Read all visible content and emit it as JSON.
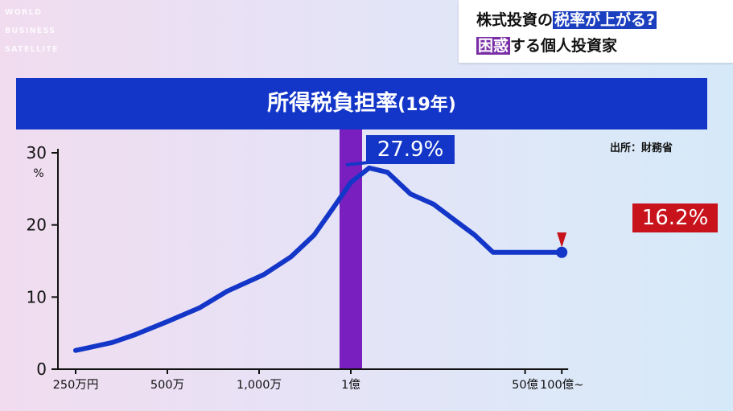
{
  "logo": {
    "lines": [
      "WORLD",
      "BUSINESS",
      "SATELLITE"
    ]
  },
  "headline": {
    "line1_prefix": "株式投資の",
    "line1_highlight": "税率が上がる?",
    "line2_highlight": "困惑",
    "line2_suffix": "する個人投資家"
  },
  "title": {
    "main": "所得税負担率",
    "sub": "(19年)"
  },
  "source": "出所：財務省",
  "colors": {
    "line": "#1336c8",
    "highlight_band": "#7a1fbf",
    "peak_callout": "#1336c8",
    "end_callout": "#c8121c"
  },
  "chart_data": {
    "type": "line",
    "title": "所得税負担率(19年)",
    "ylabel": "%",
    "ylim": [
      0,
      30
    ],
    "yticks": [
      0,
      10,
      20,
      30
    ],
    "x_tick_labels": [
      "250万円",
      "500万",
      "1,000万",
      "1億",
      "50億",
      "100億~"
    ],
    "x_tick_positions": [
      0,
      1,
      2,
      3,
      4.9,
      5.3
    ],
    "highlight_x": 3,
    "grid": false,
    "series": [
      {
        "x": [
          0,
          0.15,
          0.4,
          0.65,
          1.0,
          1.35,
          1.65,
          2.05,
          2.35,
          2.6,
          2.8,
          3.0,
          3.2,
          3.4,
          3.65,
          3.9,
          4.15,
          4.35,
          4.55,
          4.9,
          5.3
        ],
        "values": [
          2.6,
          3.0,
          3.7,
          4.8,
          6.6,
          8.5,
          10.8,
          13.1,
          15.6,
          18.6,
          22.2,
          25.9,
          27.9,
          27.3,
          24.3,
          22.9,
          20.5,
          18.6,
          16.2,
          16.2,
          16.2
        ]
      }
    ],
    "annotations": [
      {
        "text": "27.9%",
        "x": 3.0,
        "y": 27.9,
        "style": "blue"
      },
      {
        "text": "16.2%",
        "x": 5.3,
        "y": 16.2,
        "style": "red"
      }
    ]
  }
}
